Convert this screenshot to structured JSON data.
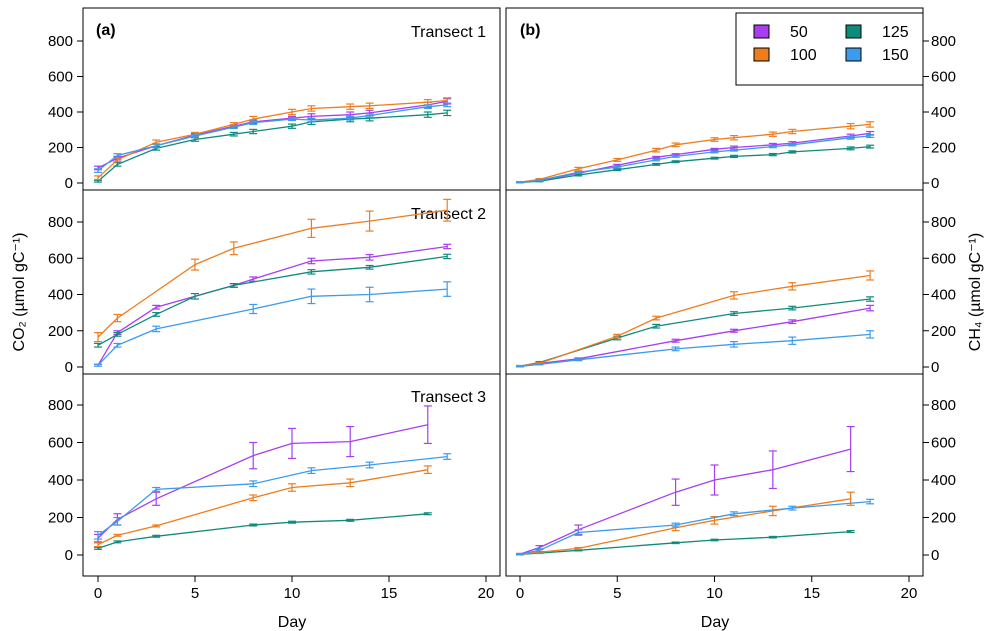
{
  "figure": {
    "left_ylabel": "CO₂ (µmol gC⁻¹)",
    "right_ylabel": "CH₄ (µmol gC⁻¹)",
    "xlabel": "Day",
    "panel_a_label": "(a)",
    "panel_b_label": "(b)",
    "legend": {
      "placement": "top-right of panel (b)",
      "entries": [
        {
          "name": "50",
          "color": "#a73ef0"
        },
        {
          "name": "125",
          "color": "#0f8b7e"
        },
        {
          "name": "100",
          "color": "#ee7d1e"
        },
        {
          "name": "150",
          "color": "#3c9bec"
        }
      ]
    }
  },
  "chart_data": [
    {
      "type": "line",
      "panel": "a",
      "title": "Transect 1",
      "xlim": [
        0,
        20
      ],
      "ylim": [
        0,
        900
      ],
      "xticks": [
        0,
        5,
        10,
        15,
        20
      ],
      "yticks": [
        0,
        200,
        400,
        600,
        800
      ],
      "series": [
        {
          "name": "50",
          "color": "#a73ef0",
          "x": [
            0,
            1,
            3,
            5,
            7,
            8,
            10,
            11,
            13,
            14,
            17,
            18
          ],
          "y": [
            85,
            140,
            210,
            270,
            320,
            345,
            365,
            375,
            385,
            395,
            440,
            460
          ],
          "err": [
            10,
            10,
            10,
            8,
            8,
            10,
            10,
            15,
            15,
            15,
            15,
            15
          ]
        },
        {
          "name": "125",
          "color": "#0f8b7e",
          "x": [
            0,
            1,
            3,
            5,
            7,
            8,
            10,
            11,
            13,
            14,
            17,
            18
          ],
          "y": [
            10,
            105,
            195,
            245,
            275,
            290,
            320,
            345,
            360,
            365,
            385,
            395
          ],
          "err": [
            5,
            10,
            10,
            10,
            10,
            12,
            12,
            15,
            15,
            15,
            15,
            15
          ]
        },
        {
          "name": "100",
          "color": "#ee7d1e",
          "x": [
            0,
            1,
            3,
            5,
            7,
            8,
            10,
            11,
            13,
            14,
            17,
            18
          ],
          "y": [
            30,
            130,
            230,
            275,
            330,
            360,
            400,
            420,
            430,
            435,
            455,
            465
          ],
          "err": [
            10,
            10,
            12,
            10,
            10,
            15,
            15,
            15,
            15,
            15,
            15,
            15
          ]
        },
        {
          "name": "150",
          "color": "#3c9bec",
          "x": [
            0,
            1,
            3,
            5,
            7,
            8,
            10,
            11,
            13,
            14,
            17,
            18
          ],
          "y": [
            70,
            155,
            210,
            265,
            315,
            340,
            360,
            355,
            365,
            380,
            430,
            440
          ],
          "err": [
            10,
            10,
            10,
            8,
            8,
            10,
            8,
            10,
            10,
            10,
            10,
            10
          ]
        }
      ]
    },
    {
      "type": "line",
      "panel": "a",
      "title": "Transect 2",
      "xlim": [
        0,
        20
      ],
      "ylim": [
        0,
        900
      ],
      "xticks": [
        0,
        5,
        10,
        15,
        20
      ],
      "yticks": [
        0,
        200,
        400,
        600,
        800
      ],
      "series": [
        {
          "name": "50",
          "color": "#a73ef0",
          "x": [
            0,
            1,
            3,
            7,
            8,
            11,
            14,
            18
          ],
          "y": [
            10,
            190,
            330,
            450,
            485,
            585,
            605,
            665
          ],
          "err": [
            5,
            10,
            10,
            10,
            12,
            15,
            15,
            12
          ]
        },
        {
          "name": "125",
          "color": "#0f8b7e",
          "x": [
            0,
            1,
            3,
            5,
            7,
            11,
            14,
            18
          ],
          "y": [
            120,
            180,
            290,
            390,
            450,
            525,
            550,
            610
          ],
          "err": [
            10,
            10,
            10,
            15,
            10,
            12,
            10,
            12
          ]
        },
        {
          "name": "100",
          "color": "#ee7d1e",
          "x": [
            0,
            1,
            5,
            7,
            11,
            14,
            18
          ],
          "y": [
            165,
            270,
            565,
            655,
            765,
            805,
            865
          ],
          "err": [
            25,
            20,
            30,
            35,
            50,
            55,
            60
          ]
        },
        {
          "name": "150",
          "color": "#3c9bec",
          "x": [
            0,
            1,
            3,
            8,
            11,
            14,
            18
          ],
          "y": [
            10,
            120,
            210,
            320,
            390,
            400,
            430
          ],
          "err": [
            5,
            10,
            15,
            25,
            40,
            40,
            40
          ]
        }
      ]
    },
    {
      "type": "line",
      "panel": "a",
      "title": "Transect 3",
      "xlim": [
        0,
        20
      ],
      "ylim": [
        0,
        900
      ],
      "xticks": [
        0,
        5,
        10,
        15,
        20
      ],
      "yticks": [
        0,
        200,
        400,
        600,
        800
      ],
      "series": [
        {
          "name": "50",
          "color": "#a73ef0",
          "x": [
            0,
            1,
            3,
            8,
            10,
            13,
            17
          ],
          "y": [
            90,
            190,
            300,
            530,
            595,
            605,
            695
          ],
          "err": [
            20,
            30,
            35,
            70,
            80,
            80,
            100
          ]
        },
        {
          "name": "125",
          "color": "#0f8b7e",
          "x": [
            0,
            1,
            3,
            8,
            10,
            13,
            17
          ],
          "y": [
            35,
            70,
            100,
            160,
            175,
            185,
            220
          ],
          "err": [
            5,
            5,
            5,
            5,
            5,
            5,
            5
          ]
        },
        {
          "name": "100",
          "color": "#ee7d1e",
          "x": [
            0,
            1,
            3,
            8,
            10,
            13,
            17
          ],
          "y": [
            55,
            105,
            155,
            305,
            360,
            385,
            455
          ],
          "err": [
            10,
            5,
            5,
            15,
            20,
            20,
            20
          ]
        },
        {
          "name": "150",
          "color": "#3c9bec",
          "x": [
            0,
            1,
            3,
            8,
            11,
            14,
            18
          ],
          "y": [
            105,
            180,
            350,
            380,
            450,
            480,
            525
          ],
          "err": [
            20,
            20,
            10,
            15,
            15,
            15,
            15
          ]
        }
      ]
    },
    {
      "type": "line",
      "panel": "b",
      "title": "",
      "xlim": [
        0,
        20
      ],
      "ylim": [
        0,
        900
      ],
      "xticks": [
        0,
        5,
        10,
        15,
        20
      ],
      "yticks": [
        0,
        200,
        400,
        600,
        800
      ],
      "series": [
        {
          "name": "50",
          "color": "#a73ef0",
          "x": [
            0,
            1,
            3,
            5,
            7,
            8,
            10,
            11,
            13,
            14,
            17,
            18
          ],
          "y": [
            5,
            15,
            55,
            100,
            145,
            160,
            190,
            200,
            215,
            225,
            265,
            280
          ],
          "err": [
            3,
            3,
            5,
            5,
            5,
            5,
            5,
            8,
            8,
            8,
            10,
            10
          ]
        },
        {
          "name": "125",
          "color": "#0f8b7e",
          "x": [
            0,
            1,
            3,
            5,
            7,
            8,
            10,
            11,
            13,
            14,
            17,
            18
          ],
          "y": [
            3,
            10,
            45,
            75,
            105,
            120,
            140,
            150,
            160,
            175,
            195,
            205
          ],
          "err": [
            2,
            3,
            5,
            5,
            5,
            5,
            5,
            6,
            6,
            6,
            8,
            8
          ]
        },
        {
          "name": "100",
          "color": "#ee7d1e",
          "x": [
            0,
            1,
            3,
            5,
            7,
            8,
            10,
            11,
            13,
            14,
            17,
            18
          ],
          "y": [
            5,
            20,
            80,
            130,
            185,
            215,
            245,
            255,
            275,
            290,
            320,
            330
          ],
          "err": [
            3,
            5,
            8,
            8,
            10,
            10,
            10,
            12,
            12,
            12,
            15,
            15
          ]
        },
        {
          "name": "150",
          "color": "#3c9bec",
          "x": [
            0,
            1,
            3,
            5,
            7,
            8,
            10,
            11,
            13,
            14,
            17,
            18
          ],
          "y": [
            3,
            15,
            60,
            90,
            130,
            150,
            175,
            185,
            205,
            215,
            255,
            265
          ],
          "err": [
            2,
            3,
            5,
            5,
            5,
            5,
            5,
            5,
            6,
            6,
            8,
            8
          ]
        }
      ]
    },
    {
      "type": "line",
      "panel": "b",
      "title": "",
      "xlim": [
        0,
        20
      ],
      "ylim": [
        0,
        900
      ],
      "xticks": [
        0,
        5,
        10,
        15,
        20
      ],
      "yticks": [
        0,
        200,
        400,
        600,
        800
      ],
      "series": [
        {
          "name": "50",
          "color": "#a73ef0",
          "x": [
            0,
            1,
            3,
            8,
            11,
            14,
            18
          ],
          "y": [
            5,
            20,
            45,
            145,
            200,
            250,
            325
          ],
          "err": [
            3,
            5,
            5,
            8,
            8,
            10,
            15
          ]
        },
        {
          "name": "125",
          "color": "#0f8b7e",
          "x": [
            0,
            1,
            5,
            7,
            11,
            14,
            18
          ],
          "y": [
            5,
            25,
            160,
            225,
            295,
            325,
            375
          ],
          "err": [
            3,
            5,
            10,
            10,
            10,
            10,
            12
          ]
        },
        {
          "name": "100",
          "color": "#ee7d1e",
          "x": [
            0,
            1,
            5,
            7,
            11,
            14,
            18
          ],
          "y": [
            5,
            20,
            170,
            270,
            395,
            445,
            505
          ],
          "err": [
            3,
            5,
            10,
            10,
            20,
            20,
            25
          ]
        },
        {
          "name": "150",
          "color": "#3c9bec",
          "x": [
            0,
            1,
            3,
            8,
            11,
            14,
            18
          ],
          "y": [
            3,
            15,
            40,
            100,
            125,
            145,
            180
          ],
          "err": [
            2,
            3,
            5,
            10,
            15,
            20,
            20
          ]
        }
      ]
    },
    {
      "type": "line",
      "panel": "b",
      "title": "",
      "xlim": [
        0,
        20
      ],
      "ylim": [
        0,
        900
      ],
      "xticks": [
        0,
        5,
        10,
        15,
        20
      ],
      "yticks": [
        0,
        200,
        400,
        600,
        800
      ],
      "series": [
        {
          "name": "50",
          "color": "#a73ef0",
          "x": [
            0,
            1,
            3,
            8,
            10,
            13,
            17
          ],
          "y": [
            5,
            40,
            135,
            335,
            400,
            455,
            565
          ],
          "err": [
            3,
            10,
            25,
            70,
            80,
            100,
            120
          ]
        },
        {
          "name": "125",
          "color": "#0f8b7e",
          "x": [
            0,
            1,
            3,
            8,
            10,
            13,
            17
          ],
          "y": [
            3,
            10,
            25,
            65,
            80,
            95,
            125
          ],
          "err": [
            2,
            2,
            3,
            4,
            4,
            4,
            5
          ]
        },
        {
          "name": "100",
          "color": "#ee7d1e",
          "x": [
            0,
            1,
            3,
            8,
            10,
            13,
            17
          ],
          "y": [
            5,
            15,
            35,
            145,
            185,
            235,
            300
          ],
          "err": [
            3,
            5,
            5,
            15,
            20,
            25,
            35
          ]
        },
        {
          "name": "150",
          "color": "#3c9bec",
          "x": [
            0,
            1,
            3,
            8,
            11,
            14,
            18
          ],
          "y": [
            5,
            25,
            120,
            160,
            220,
            250,
            285
          ],
          "err": [
            3,
            8,
            15,
            10,
            10,
            10,
            12
          ]
        }
      ]
    }
  ]
}
